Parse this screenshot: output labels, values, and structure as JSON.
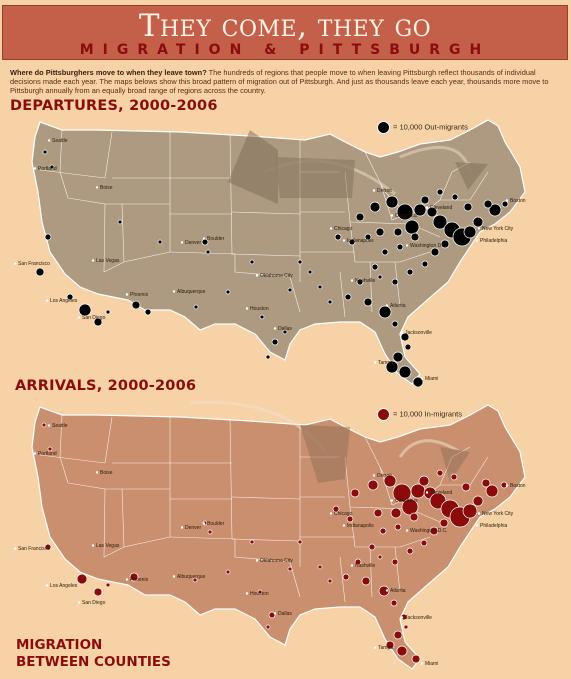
{
  "header": {
    "title": "They come, they go",
    "subtitle": "MIGRATION & PITTSBURGH"
  },
  "intro": {
    "lead": "Where do Pittsburghers move to when they leave town?",
    "body": "The hundreds of regions that people move to when leaving Pittsburgh reflect thousands of individual decisions made each year. The maps belows show this broad pattern of migration out of Pittsburgh. And just as thousands leave each year, thousands more move to Pittsburgh annually from an equally broad range of regions across the country."
  },
  "departures": {
    "heading": "DEPARTURES, 2000-2006",
    "legend": "= 10,000 Out-migrants",
    "dot_color": "#000000",
    "land_color": "#ad9a80"
  },
  "arrivals": {
    "heading": "ARRIVALS, 2000-2006",
    "legend": "= 10,000 In-migrants",
    "dot_color": "#8b0a0a",
    "land_color": "#c98f6e"
  },
  "footer": {
    "line1": "MIGRATION",
    "line2": "BETWEEN COUNTIES"
  },
  "cities": [
    {
      "name": "Seattle"
    },
    {
      "name": "Portland"
    },
    {
      "name": "Boise"
    },
    {
      "name": "San Francisco"
    },
    {
      "name": "Las Vegas"
    },
    {
      "name": "Los Angeles"
    },
    {
      "name": "San Diego"
    },
    {
      "name": "Phoenix"
    },
    {
      "name": "Denver"
    },
    {
      "name": "Boulder"
    },
    {
      "name": "Albuquerque"
    },
    {
      "name": "Oklahoma City"
    },
    {
      "name": "Houston"
    },
    {
      "name": "Dallas"
    },
    {
      "name": "Chicago"
    },
    {
      "name": "Indianapolis"
    },
    {
      "name": "Detroit"
    },
    {
      "name": "Columbus"
    },
    {
      "name": "Cleveland"
    },
    {
      "name": "Nashville"
    },
    {
      "name": "Atlanta"
    },
    {
      "name": "Jacksonville"
    },
    {
      "name": "Tampa"
    },
    {
      "name": "Miami"
    },
    {
      "name": "Washington D.C."
    },
    {
      "name": "Philadelphia"
    },
    {
      "name": "New York City"
    },
    {
      "name": "Boston"
    }
  ]
}
